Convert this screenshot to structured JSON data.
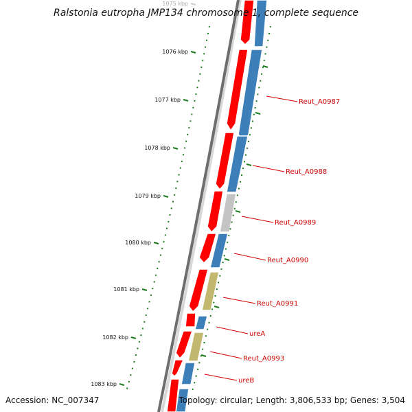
{
  "title": "Ralstonia eutropha JMP134 chromosome 1, complete sequence",
  "footer": {
    "accession": "Accession: NC_007347",
    "topology": "Topology: circular; Length: 3,806,533 bp; Genes: 3,504"
  },
  "colors": {
    "backbone": "#6e6e6e",
    "tick": "#1a7a1a",
    "red_gene": "#ff0000",
    "blue_gene": "#3d7fb8",
    "gray_gene": "#c4c4c4",
    "tan_gene": "#c2b870",
    "label": "#d00000"
  },
  "ticks": [
    {
      "label": "1075 kbp",
      "kbp": 1075
    },
    {
      "label": "1076 kbp",
      "kbp": 1076
    },
    {
      "label": "1077 kbp",
      "kbp": 1077
    },
    {
      "label": "1078 kbp",
      "kbp": 1078
    },
    {
      "label": "1079 kbp",
      "kbp": 1079
    },
    {
      "label": "1080 kbp",
      "kbp": 1080
    },
    {
      "label": "1081 kbp",
      "kbp": 1081
    },
    {
      "label": "1082 kbp",
      "kbp": 1082
    },
    {
      "label": "1083 kbp",
      "kbp": 1083
    }
  ],
  "gene_labels": [
    {
      "label": "Reut_A0987"
    },
    {
      "label": "Reut_A0988"
    },
    {
      "label": "Reut_A0989"
    },
    {
      "label": "Reut_A0990"
    },
    {
      "label": "Reut_A0991"
    },
    {
      "label": "ureA"
    },
    {
      "label": "Reut_A0993"
    },
    {
      "label": "ureB"
    }
  ]
}
